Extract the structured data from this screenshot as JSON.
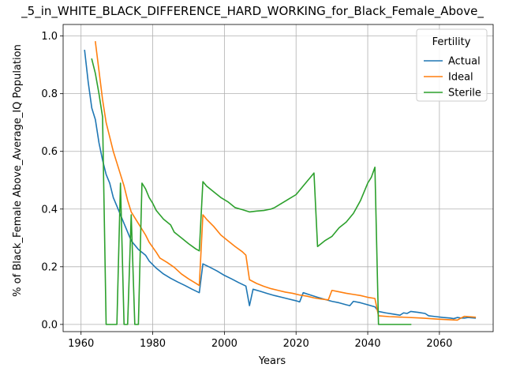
{
  "chart_data": {
    "type": "line",
    "title": "_5_in_WHITE_BLACK_DIFFERENCE_HARD_WORKING_for_Black_Female_Above_",
    "xlabel": "Years",
    "ylabel": "% of Black_Female Above_Average_IQ Population",
    "xlim": [
      1955,
      2075
    ],
    "ylim": [
      -0.025,
      1.04
    ],
    "xticks": [
      1960,
      1980,
      2000,
      2020,
      2040,
      2060
    ],
    "yticks": [
      0.0,
      0.2,
      0.4,
      0.6,
      0.8,
      1.0
    ],
    "xtick_labels": [
      "1960",
      "1980",
      "2000",
      "2020",
      "2040",
      "2060"
    ],
    "ytick_labels": [
      "0.0",
      "0.2",
      "0.4",
      "0.6",
      "0.8",
      "1.0"
    ],
    "grid": true,
    "legend": {
      "title": "Fertility",
      "placement": "top-right"
    },
    "series": [
      {
        "name": "Actual",
        "color": "#1f77b4",
        "points": [
          [
            1961,
            0.95
          ],
          [
            1962,
            0.84
          ],
          [
            1963,
            0.75
          ],
          [
            1964,
            0.71
          ],
          [
            1965,
            0.63
          ],
          [
            1966,
            0.57
          ],
          [
            1967,
            0.52
          ],
          [
            1968,
            0.49
          ],
          [
            1969,
            0.44
          ],
          [
            1970,
            0.41
          ],
          [
            1971,
            0.38
          ],
          [
            1972,
            0.35
          ],
          [
            1973,
            0.32
          ],
          [
            1974,
            0.29
          ],
          [
            1976,
            0.26
          ],
          [
            1978,
            0.24
          ],
          [
            1979,
            0.22
          ],
          [
            1981,
            0.195
          ],
          [
            1983,
            0.175
          ],
          [
            1985,
            0.16
          ],
          [
            1987,
            0.147
          ],
          [
            1989,
            0.135
          ],
          [
            1991,
            0.122
          ],
          [
            1993,
            0.11
          ],
          [
            1994,
            0.21
          ],
          [
            1996,
            0.198
          ],
          [
            1998,
            0.185
          ],
          [
            2000,
            0.17
          ],
          [
            2002,
            0.158
          ],
          [
            2004,
            0.145
          ],
          [
            2006,
            0.133
          ],
          [
            2007,
            0.065
          ],
          [
            2008,
            0.122
          ],
          [
            2010,
            0.115
          ],
          [
            2012,
            0.107
          ],
          [
            2014,
            0.1
          ],
          [
            2016,
            0.094
          ],
          [
            2018,
            0.088
          ],
          [
            2020,
            0.082
          ],
          [
            2021,
            0.078
          ],
          [
            2022,
            0.11
          ],
          [
            2024,
            0.102
          ],
          [
            2026,
            0.094
          ],
          [
            2028,
            0.087
          ],
          [
            2030,
            0.08
          ],
          [
            2032,
            0.075
          ],
          [
            2034,
            0.068
          ],
          [
            2035,
            0.065
          ],
          [
            2036,
            0.08
          ],
          [
            2038,
            0.075
          ],
          [
            2040,
            0.068
          ],
          [
            2042,
            0.061
          ],
          [
            2043,
            0.045
          ],
          [
            2045,
            0.04
          ],
          [
            2047,
            0.036
          ],
          [
            2049,
            0.032
          ],
          [
            2050,
            0.04
          ],
          [
            2051,
            0.038
          ],
          [
            2052,
            0.045
          ],
          [
            2054,
            0.042
          ],
          [
            2056,
            0.038
          ],
          [
            2057,
            0.03
          ],
          [
            2059,
            0.027
          ],
          [
            2061,
            0.024
          ],
          [
            2063,
            0.022
          ],
          [
            2064,
            0.02
          ],
          [
            2065,
            0.024
          ],
          [
            2066,
            0.022
          ],
          [
            2067,
            0.022
          ],
          [
            2068,
            0.024
          ],
          [
            2070,
            0.022
          ]
        ]
      },
      {
        "name": "Ideal",
        "color": "#ff7f0e",
        "points": [
          [
            1964,
            0.98
          ],
          [
            1965,
            0.88
          ],
          [
            1966,
            0.78
          ],
          [
            1967,
            0.7
          ],
          [
            1968,
            0.65
          ],
          [
            1969,
            0.6
          ],
          [
            1970,
            0.56
          ],
          [
            1971,
            0.52
          ],
          [
            1972,
            0.48
          ],
          [
            1973,
            0.43
          ],
          [
            1974,
            0.39
          ],
          [
            1976,
            0.35
          ],
          [
            1978,
            0.31
          ],
          [
            1979,
            0.285
          ],
          [
            1981,
            0.25
          ],
          [
            1982,
            0.23
          ],
          [
            1984,
            0.215
          ],
          [
            1986,
            0.198
          ],
          [
            1988,
            0.175
          ],
          [
            1990,
            0.158
          ],
          [
            1992,
            0.143
          ],
          [
            1993,
            0.135
          ],
          [
            1994,
            0.38
          ],
          [
            1995,
            0.365
          ],
          [
            1997,
            0.34
          ],
          [
            1999,
            0.31
          ],
          [
            2001,
            0.29
          ],
          [
            2003,
            0.27
          ],
          [
            2005,
            0.252
          ],
          [
            2006,
            0.24
          ],
          [
            2007,
            0.155
          ],
          [
            2009,
            0.142
          ],
          [
            2011,
            0.132
          ],
          [
            2013,
            0.124
          ],
          [
            2015,
            0.118
          ],
          [
            2017,
            0.112
          ],
          [
            2019,
            0.108
          ],
          [
            2021,
            0.102
          ],
          [
            2023,
            0.098
          ],
          [
            2025,
            0.092
          ],
          [
            2027,
            0.088
          ],
          [
            2029,
            0.085
          ],
          [
            2030,
            0.118
          ],
          [
            2032,
            0.113
          ],
          [
            2034,
            0.108
          ],
          [
            2036,
            0.104
          ],
          [
            2038,
            0.1
          ],
          [
            2040,
            0.094
          ],
          [
            2042,
            0.09
          ],
          [
            2043,
            0.03
          ],
          [
            2046,
            0.027
          ],
          [
            2050,
            0.025
          ],
          [
            2055,
            0.022
          ],
          [
            2060,
            0.018
          ],
          [
            2065,
            0.015
          ],
          [
            2066,
            0.022
          ],
          [
            2067,
            0.028
          ],
          [
            2070,
            0.025
          ]
        ]
      },
      {
        "name": "Sterile",
        "color": "#2ca02c",
        "points": [
          [
            1963,
            0.92
          ],
          [
            1964,
            0.87
          ],
          [
            1965,
            0.8
          ],
          [
            1966,
            0.72
          ],
          [
            1967,
            0.0
          ],
          [
            1970,
            0.0
          ],
          [
            1971,
            0.49
          ],
          [
            1972,
            0.0
          ],
          [
            1973,
            0.0
          ],
          [
            1974,
            0.38
          ],
          [
            1975,
            0.0
          ],
          [
            1976,
            0.0
          ],
          [
            1977,
            0.49
          ],
          [
            1978,
            0.47
          ],
          [
            1979,
            0.44
          ],
          [
            1980,
            0.42
          ],
          [
            1981,
            0.395
          ],
          [
            1983,
            0.365
          ],
          [
            1985,
            0.345
          ],
          [
            1986,
            0.32
          ],
          [
            1988,
            0.3
          ],
          [
            1990,
            0.28
          ],
          [
            1992,
            0.262
          ],
          [
            1993,
            0.255
          ],
          [
            1994,
            0.495
          ],
          [
            1995,
            0.48
          ],
          [
            1997,
            0.46
          ],
          [
            1999,
            0.44
          ],
          [
            2001,
            0.425
          ],
          [
            2003,
            0.405
          ],
          [
            2005,
            0.398
          ],
          [
            2007,
            0.39
          ],
          [
            2009,
            0.393
          ],
          [
            2011,
            0.395
          ],
          [
            2013,
            0.4
          ],
          [
            2014,
            0.405
          ],
          [
            2016,
            0.42
          ],
          [
            2018,
            0.435
          ],
          [
            2020,
            0.45
          ],
          [
            2022,
            0.48
          ],
          [
            2024,
            0.51
          ],
          [
            2025,
            0.525
          ],
          [
            2026,
            0.27
          ],
          [
            2028,
            0.29
          ],
          [
            2030,
            0.305
          ],
          [
            2032,
            0.335
          ],
          [
            2034,
            0.355
          ],
          [
            2036,
            0.385
          ],
          [
            2038,
            0.43
          ],
          [
            2040,
            0.49
          ],
          [
            2041,
            0.51
          ],
          [
            2042,
            0.545
          ],
          [
            2043,
            0.0
          ],
          [
            2052,
            0.0
          ]
        ]
      }
    ]
  }
}
